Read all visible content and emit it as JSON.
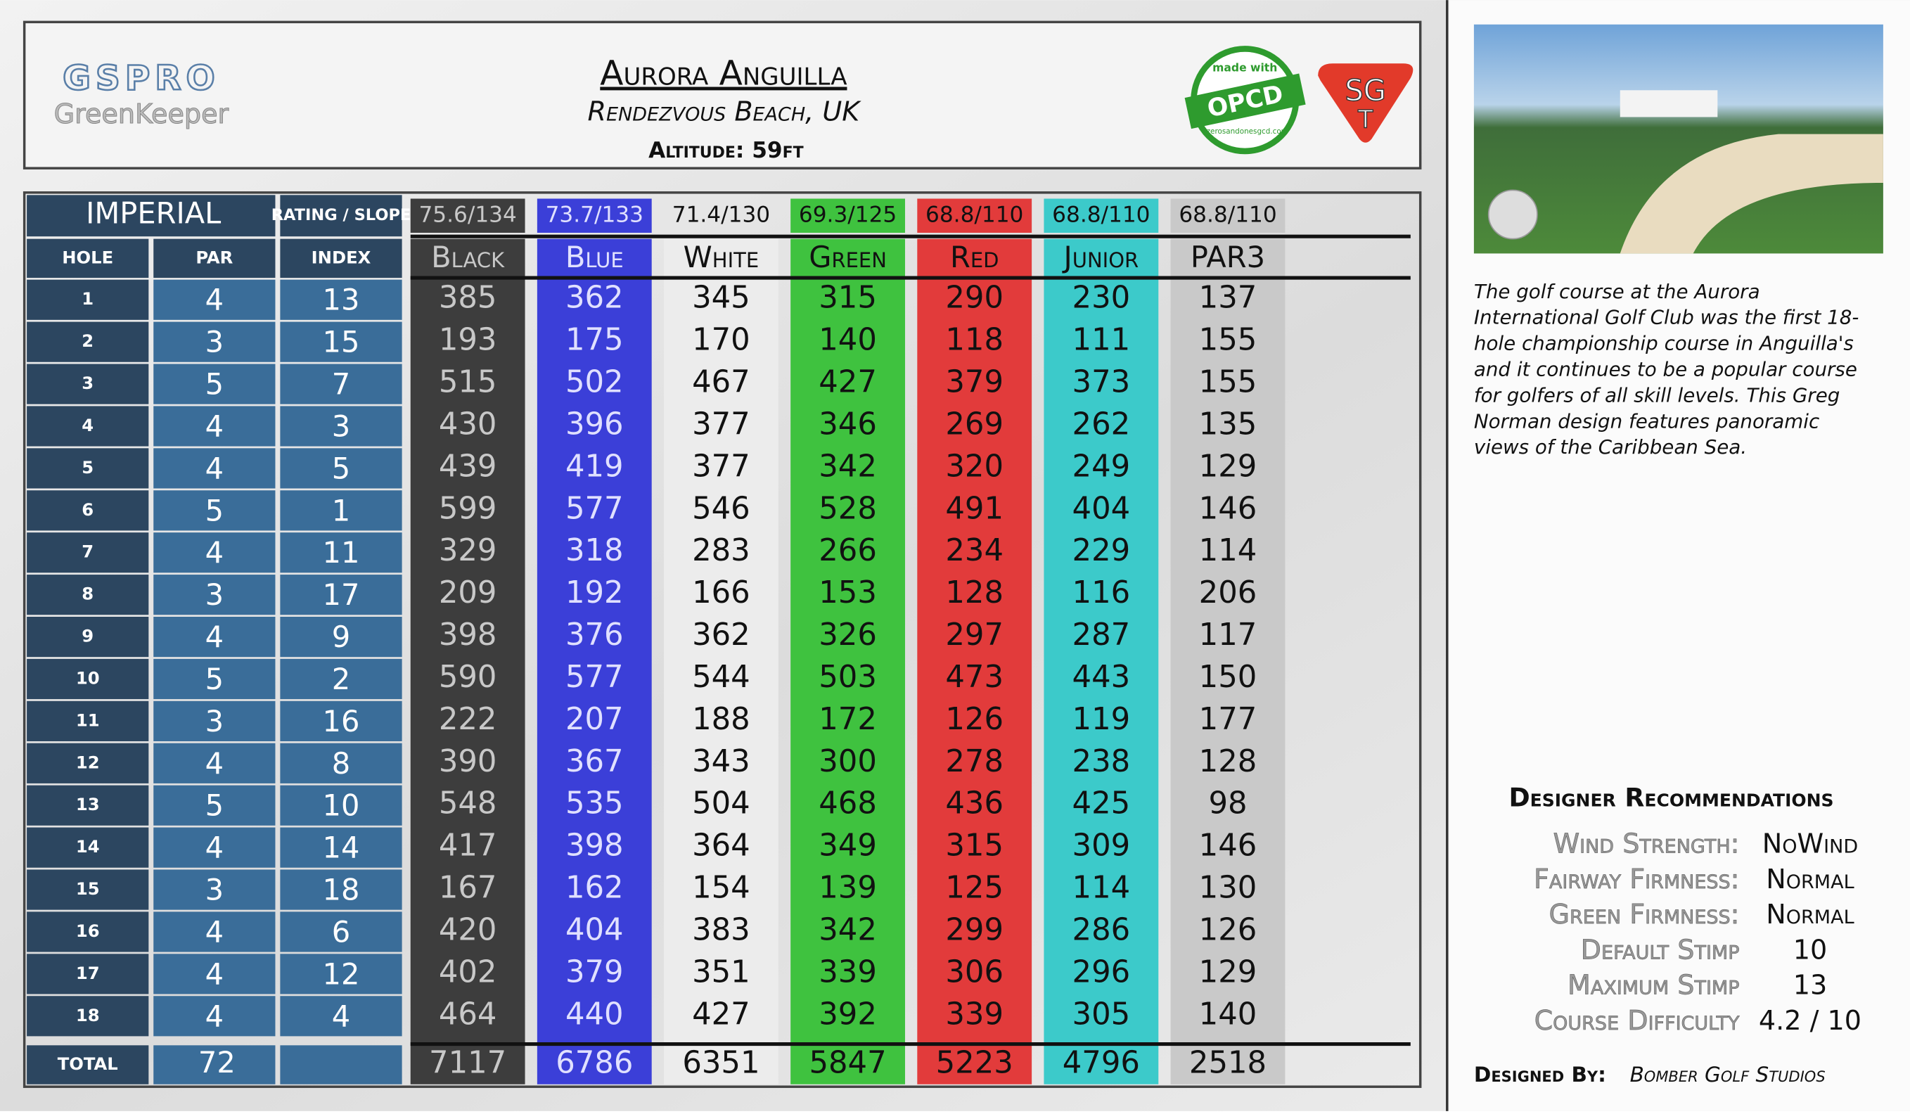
{
  "header": {
    "logo": "GSPRO",
    "logo_sub": "GreenKeeper",
    "title": "Aurora Anguilla",
    "subtitle": "Rendezvous Beach, UK",
    "altitude": "Altitude: 59ft",
    "badge_top": "made with",
    "badge_main": "OPCD",
    "badge_bottom": "zerosandonesgcd.com",
    "sgt_top": "SG",
    "sgt_bottom": "T"
  },
  "table": {
    "units": "IMPERIAL",
    "rating_label": "RATING / SLOPE",
    "headers": [
      "HOLE",
      "PAR",
      "INDEX"
    ],
    "total_label": "TOTAL",
    "par_total": "72",
    "holes": [
      [
        "1",
        "4",
        "13"
      ],
      [
        "2",
        "3",
        "15"
      ],
      [
        "3",
        "5",
        "7"
      ],
      [
        "4",
        "4",
        "3"
      ],
      [
        "5",
        "4",
        "5"
      ],
      [
        "6",
        "5",
        "1"
      ],
      [
        "7",
        "4",
        "11"
      ],
      [
        "8",
        "3",
        "17"
      ],
      [
        "9",
        "4",
        "9"
      ],
      [
        "10",
        "5",
        "2"
      ],
      [
        "11",
        "3",
        "16"
      ],
      [
        "12",
        "4",
        "8"
      ],
      [
        "13",
        "5",
        "10"
      ],
      [
        "14",
        "4",
        "14"
      ],
      [
        "15",
        "3",
        "18"
      ],
      [
        "16",
        "4",
        "6"
      ],
      [
        "17",
        "4",
        "12"
      ],
      [
        "18",
        "4",
        "4"
      ]
    ],
    "tees": [
      {
        "name": "Black",
        "rating": "75.6/134",
        "color": "#3d3d3d",
        "text": "#c8c8c8",
        "yards": [
          "385",
          "193",
          "515",
          "430",
          "439",
          "599",
          "329",
          "209",
          "398",
          "590",
          "222",
          "390",
          "548",
          "417",
          "167",
          "420",
          "402",
          "464"
        ],
        "total": "7117"
      },
      {
        "name": "Blue",
        "rating": "73.7/133",
        "color": "#3b3fd8",
        "text": "#e0e0ff",
        "yards": [
          "362",
          "175",
          "502",
          "396",
          "419",
          "577",
          "318",
          "192",
          "376",
          "577",
          "207",
          "367",
          "535",
          "398",
          "162",
          "404",
          "379",
          "440"
        ],
        "total": "6786"
      },
      {
        "name": "White",
        "rating": "71.4/130",
        "color": "#ececec",
        "text": "#111111",
        "yards": [
          "345",
          "170",
          "467",
          "377",
          "377",
          "546",
          "283",
          "166",
          "362",
          "544",
          "188",
          "343",
          "504",
          "364",
          "154",
          "383",
          "351",
          "427"
        ],
        "total": "6351"
      },
      {
        "name": "Green",
        "rating": "69.3/125",
        "color": "#3fc23f",
        "text": "#111111",
        "yards": [
          "315",
          "140",
          "427",
          "346",
          "342",
          "528",
          "266",
          "153",
          "326",
          "503",
          "172",
          "300",
          "468",
          "349",
          "139",
          "342",
          "339",
          "392"
        ],
        "total": "5847"
      },
      {
        "name": "Red",
        "rating": "68.8/110",
        "color": "#e23b3b",
        "text": "#111111",
        "yards": [
          "290",
          "118",
          "379",
          "269",
          "320",
          "491",
          "234",
          "128",
          "297",
          "473",
          "126",
          "278",
          "436",
          "315",
          "125",
          "299",
          "306",
          "339"
        ],
        "total": "5223"
      },
      {
        "name": "Junior",
        "rating": "68.8/110",
        "color": "#3ccaca",
        "text": "#111111",
        "yards": [
          "230",
          "111",
          "373",
          "262",
          "249",
          "404",
          "229",
          "116",
          "287",
          "443",
          "119",
          "238",
          "425",
          "309",
          "114",
          "286",
          "296",
          "305"
        ],
        "total": "4796"
      },
      {
        "name": "PAR3",
        "rating": "68.8/110",
        "color": "#c9c9c9",
        "text": "#111111",
        "yards": [
          "137",
          "155",
          "155",
          "135",
          "129",
          "146",
          "114",
          "206",
          "117",
          "150",
          "177",
          "128",
          "98",
          "146",
          "130",
          "126",
          "129",
          "140"
        ],
        "total": "2518"
      }
    ]
  },
  "description": [
    "The golf course at the Aurora",
    "International Golf Club was the first 18-",
    "hole championship course in Anguilla's",
    "and it continues to be a popular course",
    "for golfers of all skill levels. This Greg",
    "Norman design features panoramic",
    "views of the Caribbean Sea."
  ],
  "recommendations": {
    "title": "Designer Recommendations",
    "items": [
      {
        "label": "Wind Strength:",
        "value": "NoWind"
      },
      {
        "label": "Fairway Firmness:",
        "value": "Normal"
      },
      {
        "label": "Green Firmness:",
        "value": "Normal"
      },
      {
        "label": "Default Stimp",
        "value": "10"
      },
      {
        "label": "Maximum Stimp",
        "value": "13"
      },
      {
        "label": "Course Difficulty",
        "value": "4.2 / 10"
      }
    ]
  },
  "designer": {
    "label": "Designed By:",
    "value": "Bomber Golf Studios"
  }
}
